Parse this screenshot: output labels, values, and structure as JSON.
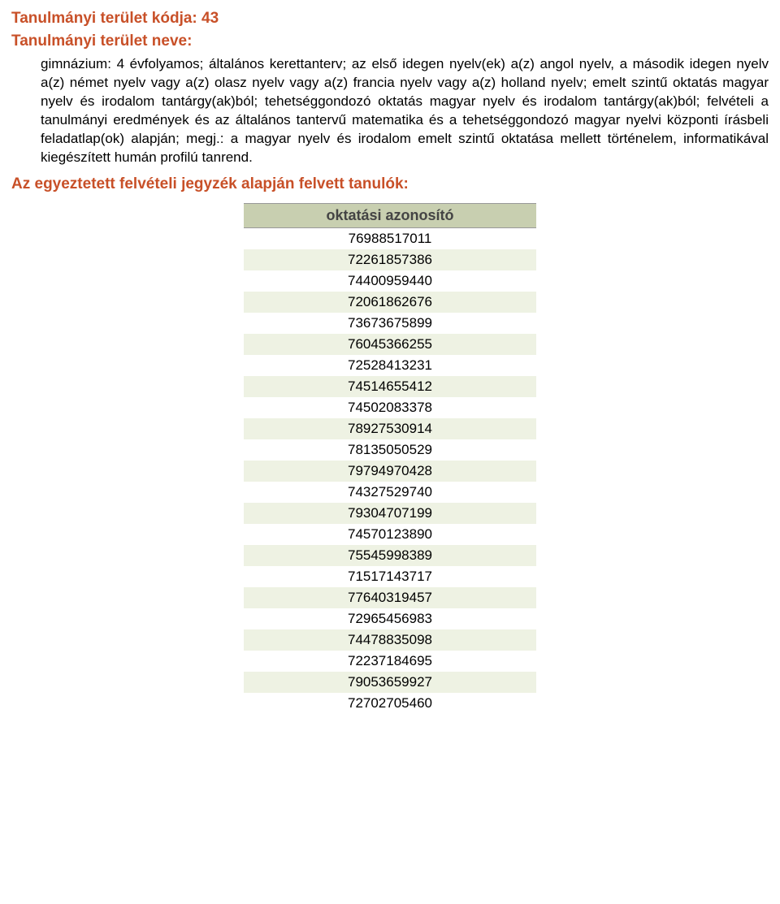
{
  "header": {
    "code_label": "Tanulmányi terület kódja: 43",
    "name_label": "Tanulmányi terület neve:"
  },
  "description": "gimnázium: 4 évfolyamos; általános kerettanterv; az első idegen nyelv(ek) a(z) angol nyelv, a második idegen nyelv a(z) német nyelv vagy a(z) olasz nyelv vagy a(z) francia nyelv vagy a(z) holland nyelv; emelt szintű oktatás magyar nyelv és irodalom tantárgy(ak)ból; tehetséggondozó oktatás magyar nyelv és irodalom tantárgy(ak)ból; felvételi a tanulmányi eredmények és az általános tantervű matematika és a tehetséggondozó magyar nyelvi központi írásbeli feladatlap(ok) alapján; megj.: a magyar nyelv és irodalom emelt szintű oktatása mellett történelem, informatikával kiegészített humán profilú tanrend.",
  "list_heading": "Az egyeztetett felvételi jegyzék alapján felvett tanulók:",
  "table": {
    "header": "oktatási azonosító",
    "rows": [
      "76988517011",
      "72261857386",
      "74400959440",
      "72061862676",
      "73673675899",
      "76045366255",
      "72528413231",
      "74514655412",
      "74502083378",
      "78927530914",
      "78135050529",
      "79794970428",
      "74327529740",
      "79304707199",
      "74570123890",
      "75545998389",
      "71517143717",
      "77640319457",
      "72965456983",
      "74478835098",
      "72237184695",
      "79053659927",
      "72702705460"
    ]
  },
  "styles": {
    "accent_color": "#c85028",
    "table_header_bg": "#c8cfb0",
    "row_alt_bg": "#eef2e3",
    "font_family": "Verdana",
    "header_fontsize_pt": 14,
    "body_fontsize_pt": 13
  }
}
